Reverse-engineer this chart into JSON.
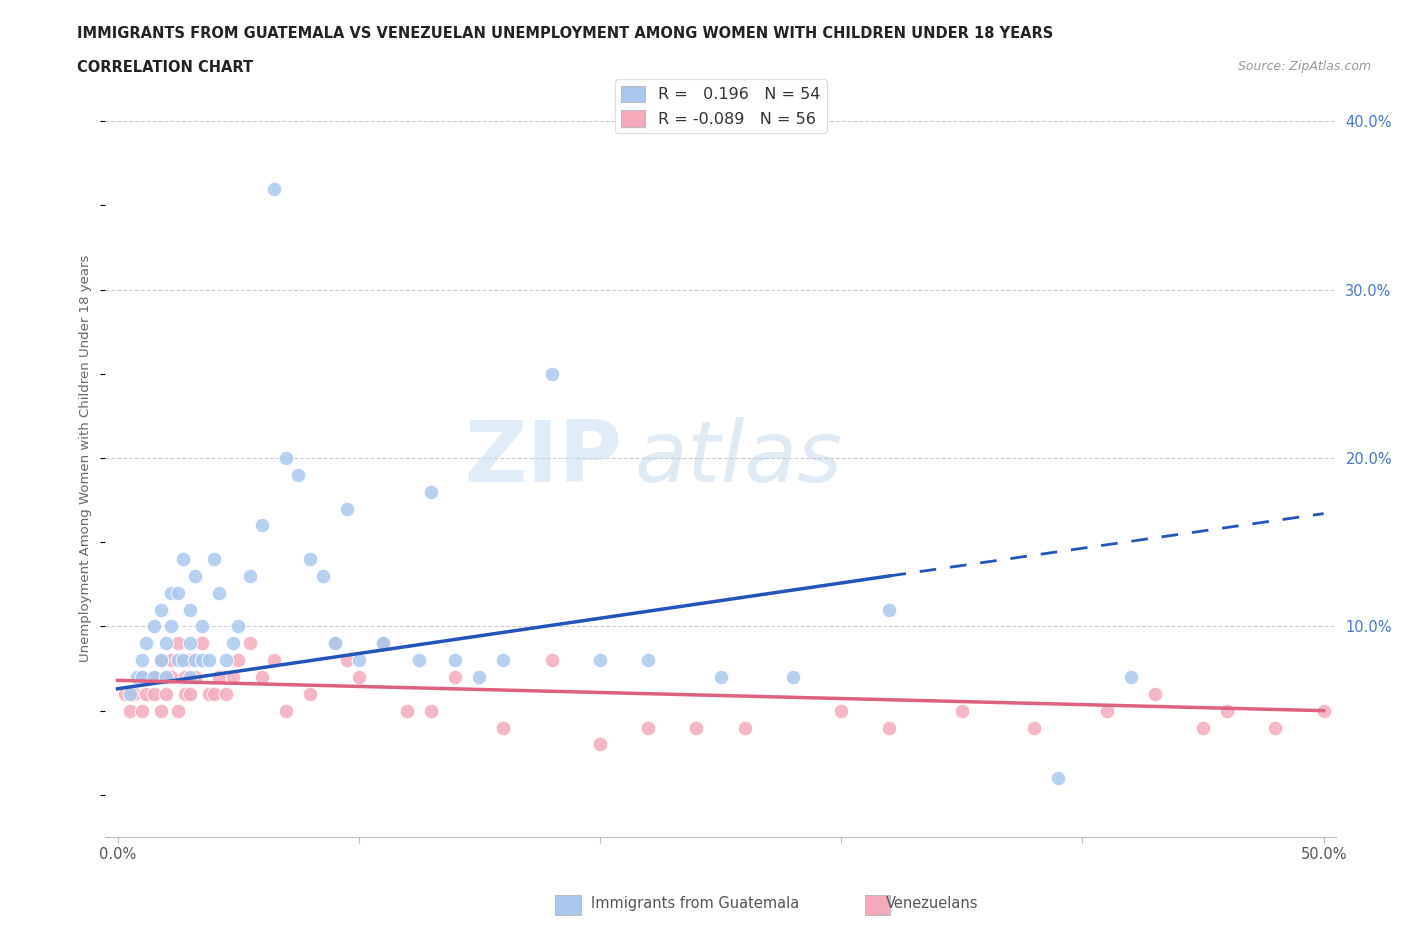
{
  "title1": "IMMIGRANTS FROM GUATEMALA VS VENEZUELAN UNEMPLOYMENT AMONG WOMEN WITH CHILDREN UNDER 18 YEARS",
  "title2": "CORRELATION CHART",
  "source": "Source: ZipAtlas.com",
  "ylabel": "Unemployment Among Women with Children Under 18 years",
  "xlim": [
    -0.005,
    0.505
  ],
  "ylim": [
    -0.025,
    0.425
  ],
  "blue_R": 0.196,
  "blue_N": 54,
  "pink_R": -0.089,
  "pink_N": 56,
  "blue_color": "#A8C8EE",
  "pink_color": "#F4AABB",
  "blue_line_color": "#2255BB",
  "pink_line_color": "#E06080",
  "blue_scatter_x": [
    0.005,
    0.008,
    0.01,
    0.01,
    0.012,
    0.015,
    0.015,
    0.018,
    0.018,
    0.02,
    0.02,
    0.022,
    0.022,
    0.025,
    0.025,
    0.027,
    0.027,
    0.03,
    0.03,
    0.03,
    0.032,
    0.032,
    0.035,
    0.035,
    0.038,
    0.04,
    0.042,
    0.045,
    0.048,
    0.05,
    0.055,
    0.06,
    0.065,
    0.07,
    0.075,
    0.08,
    0.085,
    0.09,
    0.095,
    0.1,
    0.11,
    0.125,
    0.13,
    0.14,
    0.15,
    0.16,
    0.18,
    0.2,
    0.22,
    0.25,
    0.28,
    0.32,
    0.39,
    0.42
  ],
  "blue_scatter_y": [
    0.06,
    0.07,
    0.07,
    0.08,
    0.09,
    0.07,
    0.1,
    0.08,
    0.11,
    0.07,
    0.09,
    0.1,
    0.12,
    0.08,
    0.12,
    0.08,
    0.14,
    0.07,
    0.09,
    0.11,
    0.08,
    0.13,
    0.08,
    0.1,
    0.08,
    0.14,
    0.12,
    0.08,
    0.09,
    0.1,
    0.13,
    0.16,
    0.36,
    0.2,
    0.19,
    0.14,
    0.13,
    0.09,
    0.17,
    0.08,
    0.09,
    0.08,
    0.18,
    0.08,
    0.07,
    0.08,
    0.25,
    0.08,
    0.08,
    0.07,
    0.07,
    0.11,
    0.01,
    0.07
  ],
  "pink_scatter_x": [
    0.003,
    0.005,
    0.007,
    0.01,
    0.01,
    0.012,
    0.015,
    0.015,
    0.018,
    0.018,
    0.02,
    0.02,
    0.022,
    0.022,
    0.025,
    0.025,
    0.028,
    0.028,
    0.03,
    0.03,
    0.032,
    0.035,
    0.038,
    0.04,
    0.042,
    0.045,
    0.048,
    0.05,
    0.055,
    0.06,
    0.065,
    0.07,
    0.08,
    0.09,
    0.095,
    0.1,
    0.11,
    0.12,
    0.13,
    0.14,
    0.16,
    0.18,
    0.2,
    0.22,
    0.24,
    0.26,
    0.3,
    0.32,
    0.35,
    0.38,
    0.41,
    0.43,
    0.45,
    0.46,
    0.48,
    0.5
  ],
  "pink_scatter_y": [
    0.06,
    0.05,
    0.06,
    0.05,
    0.07,
    0.06,
    0.06,
    0.07,
    0.05,
    0.08,
    0.06,
    0.07,
    0.07,
    0.08,
    0.05,
    0.09,
    0.06,
    0.07,
    0.06,
    0.08,
    0.07,
    0.09,
    0.06,
    0.06,
    0.07,
    0.06,
    0.07,
    0.08,
    0.09,
    0.07,
    0.08,
    0.05,
    0.06,
    0.09,
    0.08,
    0.07,
    0.09,
    0.05,
    0.05,
    0.07,
    0.04,
    0.08,
    0.03,
    0.04,
    0.04,
    0.04,
    0.05,
    0.04,
    0.05,
    0.04,
    0.05,
    0.06,
    0.04,
    0.05,
    0.04,
    0.05
  ],
  "blue_line_x0": 0.0,
  "blue_line_y0": 0.063,
  "blue_line_x_solid_end": 0.32,
  "blue_line_y_solid_end": 0.13,
  "blue_line_x_dash_end": 0.5,
  "blue_line_y_dash_end": 0.167,
  "pink_line_x0": 0.0,
  "pink_line_y0": 0.068,
  "pink_line_x1": 0.5,
  "pink_line_y1": 0.05
}
